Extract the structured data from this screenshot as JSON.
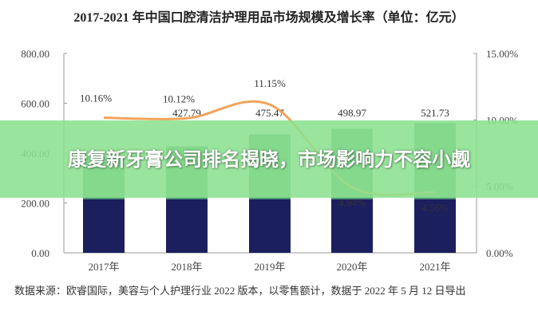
{
  "chart_data": {
    "type": "bar+line",
    "title": "2017-2021 年中国口腔清洁护理用品市场规模及增长率（单位：亿元）",
    "categories": [
      "2017年",
      "2018年",
      "2019年",
      "2020年",
      "2021年"
    ],
    "series": [
      {
        "type": "bar",
        "values": [
          384,
          427.79,
          475.47,
          498.97,
          521.73
        ],
        "value_labels": [
          "",
          "427.79",
          "475.47",
          "498.97",
          "521.73"
        ],
        "colors": [
          "#4a9a70",
          "#1c1f5e"
        ]
      },
      {
        "type": "line",
        "axis": "right",
        "values": [
          10.16,
          10.12,
          11.15,
          4.94,
          4.56
        ],
        "value_labels": [
          "10.16%",
          "10.12%",
          "11.15%",
          "4.94%",
          "4.56%"
        ],
        "color": "#f0a45a"
      }
    ],
    "y_left": {
      "ylim": [
        0,
        800
      ],
      "ticks": [
        "0.00",
        "200.00",
        "400.00",
        "600.00",
        "800.00"
      ]
    },
    "y_right": {
      "ylim": [
        0,
        15
      ],
      "ticks": [
        "0.00%",
        "5.00%",
        "10.00%",
        "15.00%"
      ]
    },
    "grid": false
  },
  "source": "数据来源：欧睿国际，美容与个人护理行业 2022 版本，以零售额计，数据于 2022 年 5 月 12 日导出",
  "banner": {
    "text": "康复新牙膏公司排名揭晓，市场影响力不容小觑",
    "color": "#8ce191"
  }
}
